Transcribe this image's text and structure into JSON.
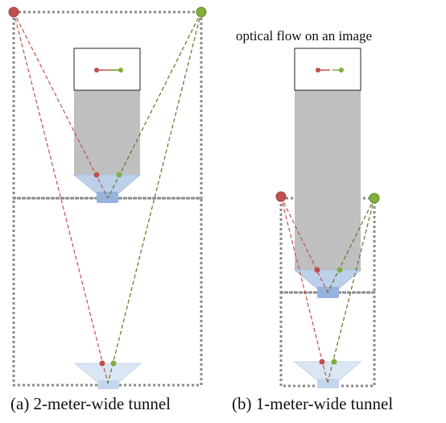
{
  "panels": [
    {
      "id": "a",
      "caption": "(a) 2-meter-wide tunnel"
    },
    {
      "id": "b",
      "caption": "(b)  1-meter-wide tunnel"
    }
  ],
  "image_label": "optical flow on an image",
  "colors": {
    "red": "#c0504d",
    "green": "#7fae3a",
    "red_dash": "#c0504d",
    "green_dash": "#5a7a22",
    "box": "#8a8a8a",
    "gray_fill": "#bfbfbf",
    "camera_fill": "#bdd0ea",
    "camera_body": "#95b3dc"
  }
}
